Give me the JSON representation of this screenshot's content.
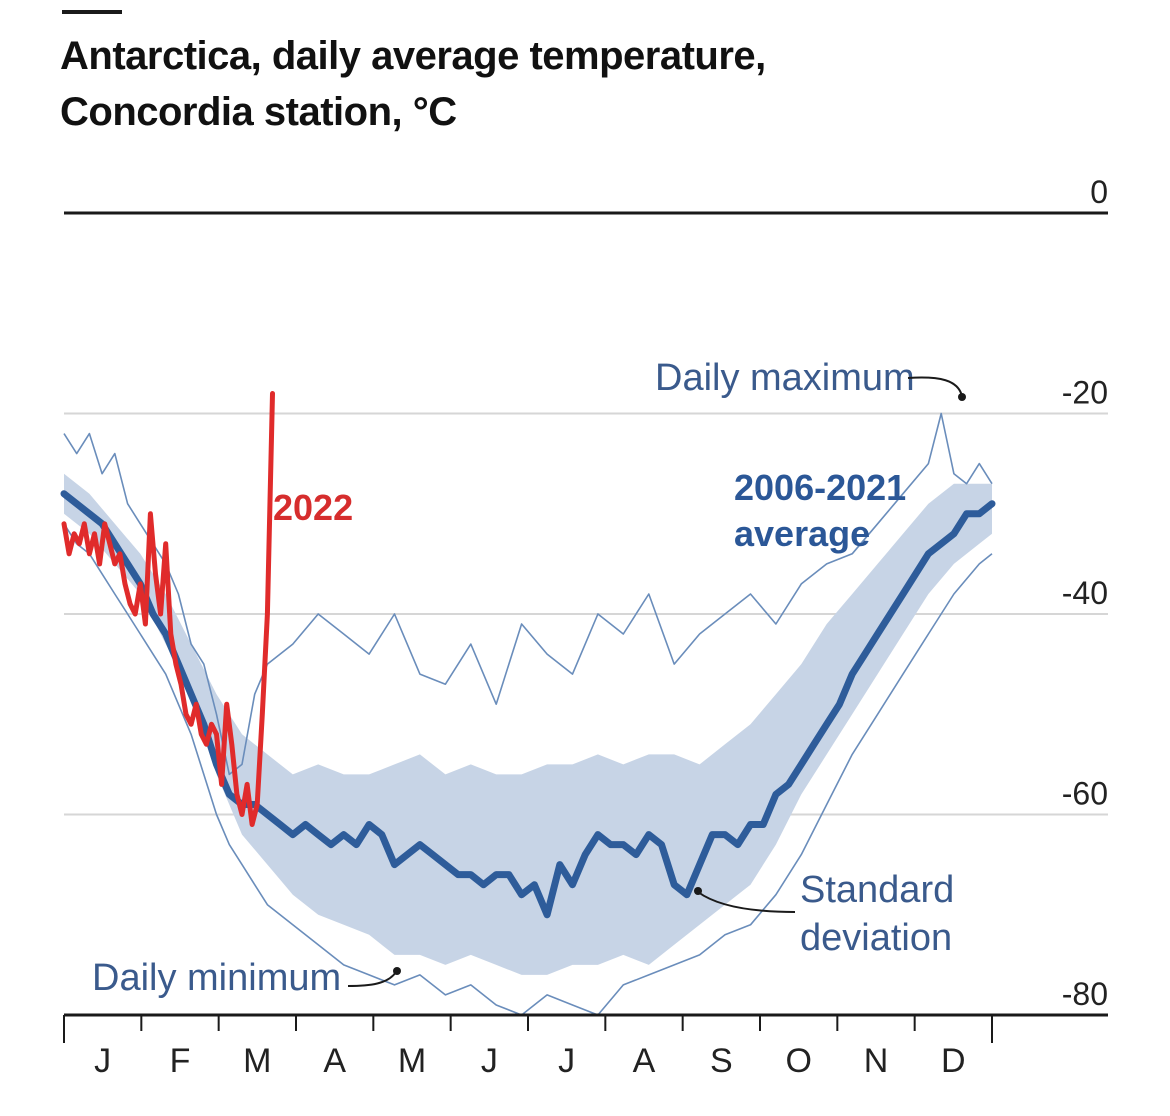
{
  "title_lines": [
    "Antarctica, daily average temperature,",
    "Concordia station, °C"
  ],
  "colors": {
    "avg": "#2e5c9a",
    "band": "#c7d4e6",
    "minmax": "#6a8dbb",
    "year2022": "#e02b2b",
    "grid": "#d6d6d6",
    "axis": "#1a1a1a"
  },
  "annotations": {
    "daily_maximum": "Daily maximum",
    "average_line1": "2006-2021",
    "average_line2": "average",
    "year_label": "2022",
    "standard_line1": "Standard",
    "standard_line2": "deviation",
    "daily_minimum": "Daily minimum"
  },
  "chart_data": {
    "type": "line",
    "title": "Antarctica, daily average temperature, Concordia station, °C",
    "xlabel": "",
    "ylabel": "°C",
    "ylim": [
      -80,
      0
    ],
    "x_domain_days": [
      0,
      365
    ],
    "yticks": [
      0,
      -20,
      -40,
      -60,
      -80
    ],
    "ytick_labels": [
      "0",
      "-20",
      "-40",
      "-60",
      "-80"
    ],
    "month_labels": [
      "J",
      "F",
      "M",
      "A",
      "M",
      "J",
      "J",
      "A",
      "S",
      "O",
      "N",
      "D"
    ],
    "series": [
      {
        "name": "Daily maximum",
        "x": [
          0,
          5,
          10,
          15,
          20,
          25,
          30,
          35,
          40,
          45,
          50,
          55,
          60,
          65,
          70,
          75,
          80,
          90,
          100,
          110,
          120,
          130,
          140,
          150,
          160,
          170,
          180,
          190,
          200,
          210,
          220,
          230,
          240,
          250,
          260,
          270,
          280,
          290,
          300,
          310,
          320,
          330,
          340,
          345,
          350,
          355,
          360,
          365
        ],
        "values": [
          -22,
          -24,
          -22,
          -26,
          -24,
          -29,
          -31,
          -33,
          -35,
          -38,
          -43,
          -45,
          -50,
          -56,
          -55,
          -48,
          -45,
          -43,
          -40,
          -42,
          -44,
          -40,
          -46,
          -47,
          -43,
          -49,
          -41,
          -44,
          -46,
          -40,
          -42,
          -38,
          -45,
          -42,
          -40,
          -38,
          -41,
          -37,
          -35,
          -34,
          -31,
          -28,
          -25,
          -20,
          -26,
          -27,
          -25,
          -27
        ]
      },
      {
        "name": "Standard deviation upper",
        "x": [
          0,
          10,
          20,
          30,
          40,
          50,
          60,
          70,
          80,
          90,
          100,
          110,
          120,
          130,
          140,
          150,
          160,
          170,
          180,
          190,
          200,
          210,
          220,
          230,
          240,
          250,
          260,
          270,
          280,
          290,
          300,
          310,
          320,
          330,
          340,
          350,
          360,
          365
        ],
        "values": [
          -26,
          -28,
          -31,
          -34,
          -38,
          -43,
          -48,
          -52,
          -54,
          -56,
          -55,
          -56,
          -56,
          -55,
          -54,
          -56,
          -55,
          -56,
          -56,
          -55,
          -55,
          -54,
          -55,
          -54,
          -54,
          -55,
          -53,
          -51,
          -48,
          -45,
          -41,
          -38,
          -35,
          -32,
          -29,
          -27,
          -27,
          -27
        ]
      },
      {
        "name": "2006-2021 average",
        "x": [
          0,
          5,
          10,
          15,
          20,
          25,
          30,
          35,
          40,
          45,
          50,
          55,
          60,
          65,
          70,
          75,
          80,
          85,
          90,
          95,
          100,
          105,
          110,
          115,
          120,
          125,
          130,
          135,
          140,
          145,
          150,
          155,
          160,
          165,
          170,
          175,
          180,
          185,
          190,
          195,
          200,
          205,
          210,
          215,
          220,
          225,
          230,
          235,
          240,
          245,
          250,
          255,
          260,
          265,
          270,
          275,
          280,
          285,
          290,
          295,
          300,
          305,
          310,
          315,
          320,
          325,
          330,
          335,
          340,
          345,
          350,
          355,
          360,
          365
        ],
        "values": [
          -28,
          -29,
          -30,
          -31,
          -33,
          -35,
          -37,
          -40,
          -42,
          -45,
          -48,
          -51,
          -55,
          -58,
          -59,
          -59,
          -60,
          -61,
          -62,
          -61,
          -62,
          -63,
          -62,
          -63,
          -61,
          -62,
          -65,
          -64,
          -63,
          -64,
          -65,
          -66,
          -66,
          -67,
          -66,
          -66,
          -68,
          -67,
          -70,
          -65,
          -67,
          -64,
          -62,
          -63,
          -63,
          -64,
          -62,
          -63,
          -67,
          -68,
          -65,
          -62,
          -62,
          -63,
          -61,
          -61,
          -58,
          -57,
          -55,
          -53,
          -51,
          -49,
          -46,
          -44,
          -42,
          -40,
          -38,
          -36,
          -34,
          -33,
          -32,
          -30,
          -30,
          -29
        ]
      },
      {
        "name": "Standard deviation lower",
        "x": [
          0,
          10,
          20,
          30,
          40,
          50,
          60,
          70,
          80,
          90,
          100,
          110,
          120,
          130,
          140,
          150,
          160,
          170,
          180,
          190,
          200,
          210,
          220,
          230,
          240,
          250,
          260,
          270,
          280,
          290,
          300,
          310,
          320,
          330,
          340,
          350,
          360,
          365
        ],
        "values": [
          -30,
          -32,
          -35,
          -38,
          -43,
          -48,
          -56,
          -62,
          -65,
          -68,
          -70,
          -71,
          -72,
          -74,
          -74,
          -75,
          -74,
          -75,
          -76,
          -76,
          -75,
          -75,
          -74,
          -75,
          -73,
          -71,
          -69,
          -67,
          -63,
          -58,
          -54,
          -50,
          -46,
          -42,
          -38,
          -35,
          -33,
          -32
        ]
      },
      {
        "name": "Daily minimum",
        "x": [
          0,
          5,
          10,
          15,
          20,
          25,
          30,
          35,
          40,
          45,
          50,
          55,
          60,
          65,
          70,
          75,
          80,
          90,
          100,
          110,
          120,
          130,
          140,
          150,
          160,
          170,
          180,
          190,
          200,
          210,
          220,
          230,
          240,
          250,
          260,
          270,
          280,
          290,
          300,
          310,
          320,
          330,
          340,
          350,
          360,
          365
        ],
        "values": [
          -31,
          -33,
          -34,
          -36,
          -38,
          -40,
          -42,
          -44,
          -46,
          -49,
          -52,
          -56,
          -60,
          -63,
          -65,
          -67,
          -69,
          -71,
          -73,
          -75,
          -76,
          -77,
          -76,
          -78,
          -77,
          -79,
          -80,
          -78,
          -79,
          -80,
          -77,
          -76,
          -75,
          -74,
          -72,
          -71,
          -68,
          -64,
          -59,
          -54,
          -50,
          -46,
          -42,
          -38,
          -35,
          -34
        ]
      },
      {
        "name": "2022",
        "x": [
          0,
          2,
          4,
          6,
          8,
          10,
          12,
          14,
          16,
          18,
          20,
          22,
          24,
          26,
          28,
          30,
          32,
          34,
          36,
          38,
          40,
          42,
          44,
          46,
          48,
          50,
          52,
          54,
          56,
          58,
          60,
          62,
          64,
          66,
          68,
          70,
          72,
          74,
          76,
          78,
          80,
          82
        ],
        "values": [
          -31,
          -34,
          -32,
          -33,
          -31,
          -34,
          -32,
          -35,
          -31,
          -33,
          -35,
          -34,
          -37,
          -39,
          -40,
          -37,
          -41,
          -30,
          -36,
          -40,
          -33,
          -42,
          -45,
          -47,
          -50,
          -51,
          -49,
          -52,
          -53,
          -51,
          -52,
          -57,
          -49,
          -53,
          -58,
          -60,
          -57,
          -61,
          -59,
          -50,
          -40,
          -18
        ]
      }
    ]
  }
}
